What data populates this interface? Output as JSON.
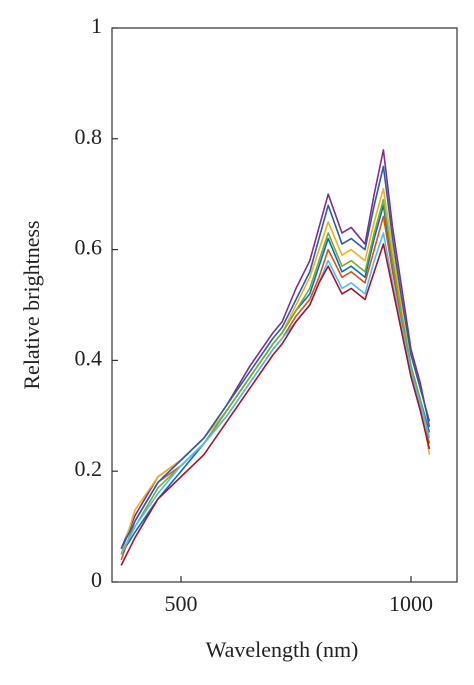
{
  "chart_data": {
    "type": "line",
    "x_label": "Wavelength (nm)",
    "y_label": "Relative brightness",
    "x": [
      370,
      400,
      450,
      500,
      550,
      600,
      650,
      700,
      720,
      750,
      780,
      800,
      820,
      850,
      870,
      900,
      920,
      940,
      960,
      980,
      1000,
      1020,
      1040
    ],
    "series": [
      {
        "color": "#7e2f8e",
        "values": [
          0.06,
          0.12,
          0.19,
          0.22,
          0.26,
          0.32,
          0.39,
          0.45,
          0.47,
          0.53,
          0.58,
          0.64,
          0.7,
          0.63,
          0.64,
          0.61,
          0.7,
          0.78,
          0.64,
          0.53,
          0.42,
          0.36,
          0.28
        ]
      },
      {
        "color": "#0072bd",
        "values": [
          0.05,
          0.09,
          0.15,
          0.2,
          0.25,
          0.31,
          0.37,
          0.43,
          0.45,
          0.49,
          0.52,
          0.57,
          0.62,
          0.56,
          0.57,
          0.55,
          0.62,
          0.68,
          0.57,
          0.48,
          0.39,
          0.33,
          0.27
        ]
      },
      {
        "color": "#d95319",
        "values": [
          0.04,
          0.11,
          0.18,
          0.21,
          0.25,
          0.3,
          0.36,
          0.42,
          0.44,
          0.48,
          0.51,
          0.55,
          0.6,
          0.55,
          0.56,
          0.54,
          0.6,
          0.66,
          0.56,
          0.47,
          0.38,
          0.32,
          0.25
        ]
      },
      {
        "color": "#edb120",
        "values": [
          0.05,
          0.13,
          0.19,
          0.22,
          0.26,
          0.31,
          0.37,
          0.43,
          0.45,
          0.5,
          0.55,
          0.6,
          0.65,
          0.59,
          0.6,
          0.58,
          0.65,
          0.71,
          0.6,
          0.49,
          0.39,
          0.33,
          0.23
        ]
      },
      {
        "color": "#77ac30",
        "values": [
          0.05,
          0.1,
          0.17,
          0.21,
          0.25,
          0.31,
          0.37,
          0.43,
          0.45,
          0.49,
          0.53,
          0.58,
          0.63,
          0.57,
          0.58,
          0.56,
          0.63,
          0.69,
          0.58,
          0.48,
          0.39,
          0.33,
          0.26
        ]
      },
      {
        "color": "#4dbeee",
        "values": [
          0.05,
          0.1,
          0.16,
          0.21,
          0.25,
          0.3,
          0.36,
          0.42,
          0.44,
          0.47,
          0.5,
          0.54,
          0.58,
          0.53,
          0.54,
          0.52,
          0.58,
          0.63,
          0.54,
          0.46,
          0.38,
          0.32,
          0.26
        ]
      },
      {
        "color": "#a2142f",
        "values": [
          0.03,
          0.08,
          0.15,
          0.19,
          0.23,
          0.29,
          0.35,
          0.41,
          0.43,
          0.47,
          0.5,
          0.54,
          0.57,
          0.52,
          0.53,
          0.51,
          0.56,
          0.61,
          0.53,
          0.45,
          0.37,
          0.31,
          0.24
        ]
      },
      {
        "color": "#2a5caa",
        "values": [
          0.06,
          0.11,
          0.18,
          0.22,
          0.26,
          0.32,
          0.38,
          0.44,
          0.46,
          0.51,
          0.56,
          0.62,
          0.68,
          0.61,
          0.62,
          0.6,
          0.68,
          0.75,
          0.62,
          0.51,
          0.41,
          0.35,
          0.29
        ]
      }
    ],
    "xlim": [
      350,
      1100
    ],
    "ylim": [
      0,
      1
    ],
    "xticks": [
      500,
      1000
    ],
    "yticks": [
      0,
      0.2,
      0.4,
      0.6,
      0.8,
      1
    ]
  }
}
